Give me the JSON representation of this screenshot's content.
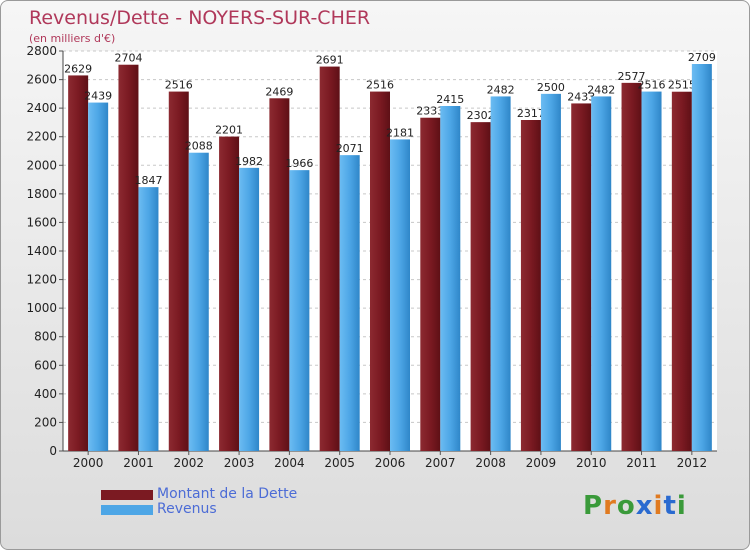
{
  "header": {
    "title": "Revenus/Dette - NOYERS-SUR-CHER",
    "subtitle": "(en milliers d'€)"
  },
  "colors": {
    "debt": "#7b1a22",
    "revenue": "#4da6e6",
    "title": "#b0385a",
    "grid": "#c8c8c8"
  },
  "chart_data": {
    "type": "bar",
    "title": "Revenus/Dette - NOYERS-SUR-CHER",
    "subtitle": "(en milliers d'€)",
    "categories": [
      "2000",
      "2001",
      "2002",
      "2003",
      "2004",
      "2005",
      "2006",
      "2007",
      "2008",
      "2009",
      "2010",
      "2011",
      "2012"
    ],
    "series": [
      {
        "name": "Montant de la Dette",
        "values": [
          2629,
          2704,
          2516,
          2201,
          2469,
          2691,
          2516,
          2333,
          2302,
          2317,
          2433,
          2577,
          2515
        ]
      },
      {
        "name": "Revenus",
        "values": [
          2439,
          1847,
          2088,
          1982,
          1966,
          2071,
          2181,
          2415,
          2482,
          2500,
          2482,
          2516,
          2709
        ]
      }
    ],
    "ylim": [
      0,
      2800
    ],
    "yticks": [
      0,
      200,
      400,
      600,
      800,
      1000,
      1200,
      1400,
      1600,
      1800,
      2000,
      2200,
      2400,
      2600,
      2800
    ],
    "grid": true,
    "legend_position": "bottom-left"
  },
  "legend": {
    "items": [
      {
        "label": "Montant de la Dette"
      },
      {
        "label": "Revenus"
      }
    ]
  },
  "logo": {
    "text": "Proxiti",
    "letter_colors": [
      "#3a9a3a",
      "#e07a20",
      "#3a9a3a",
      "#2a6ad0",
      "#e07a20",
      "#2a6ad0",
      "#3a9a3a"
    ]
  }
}
